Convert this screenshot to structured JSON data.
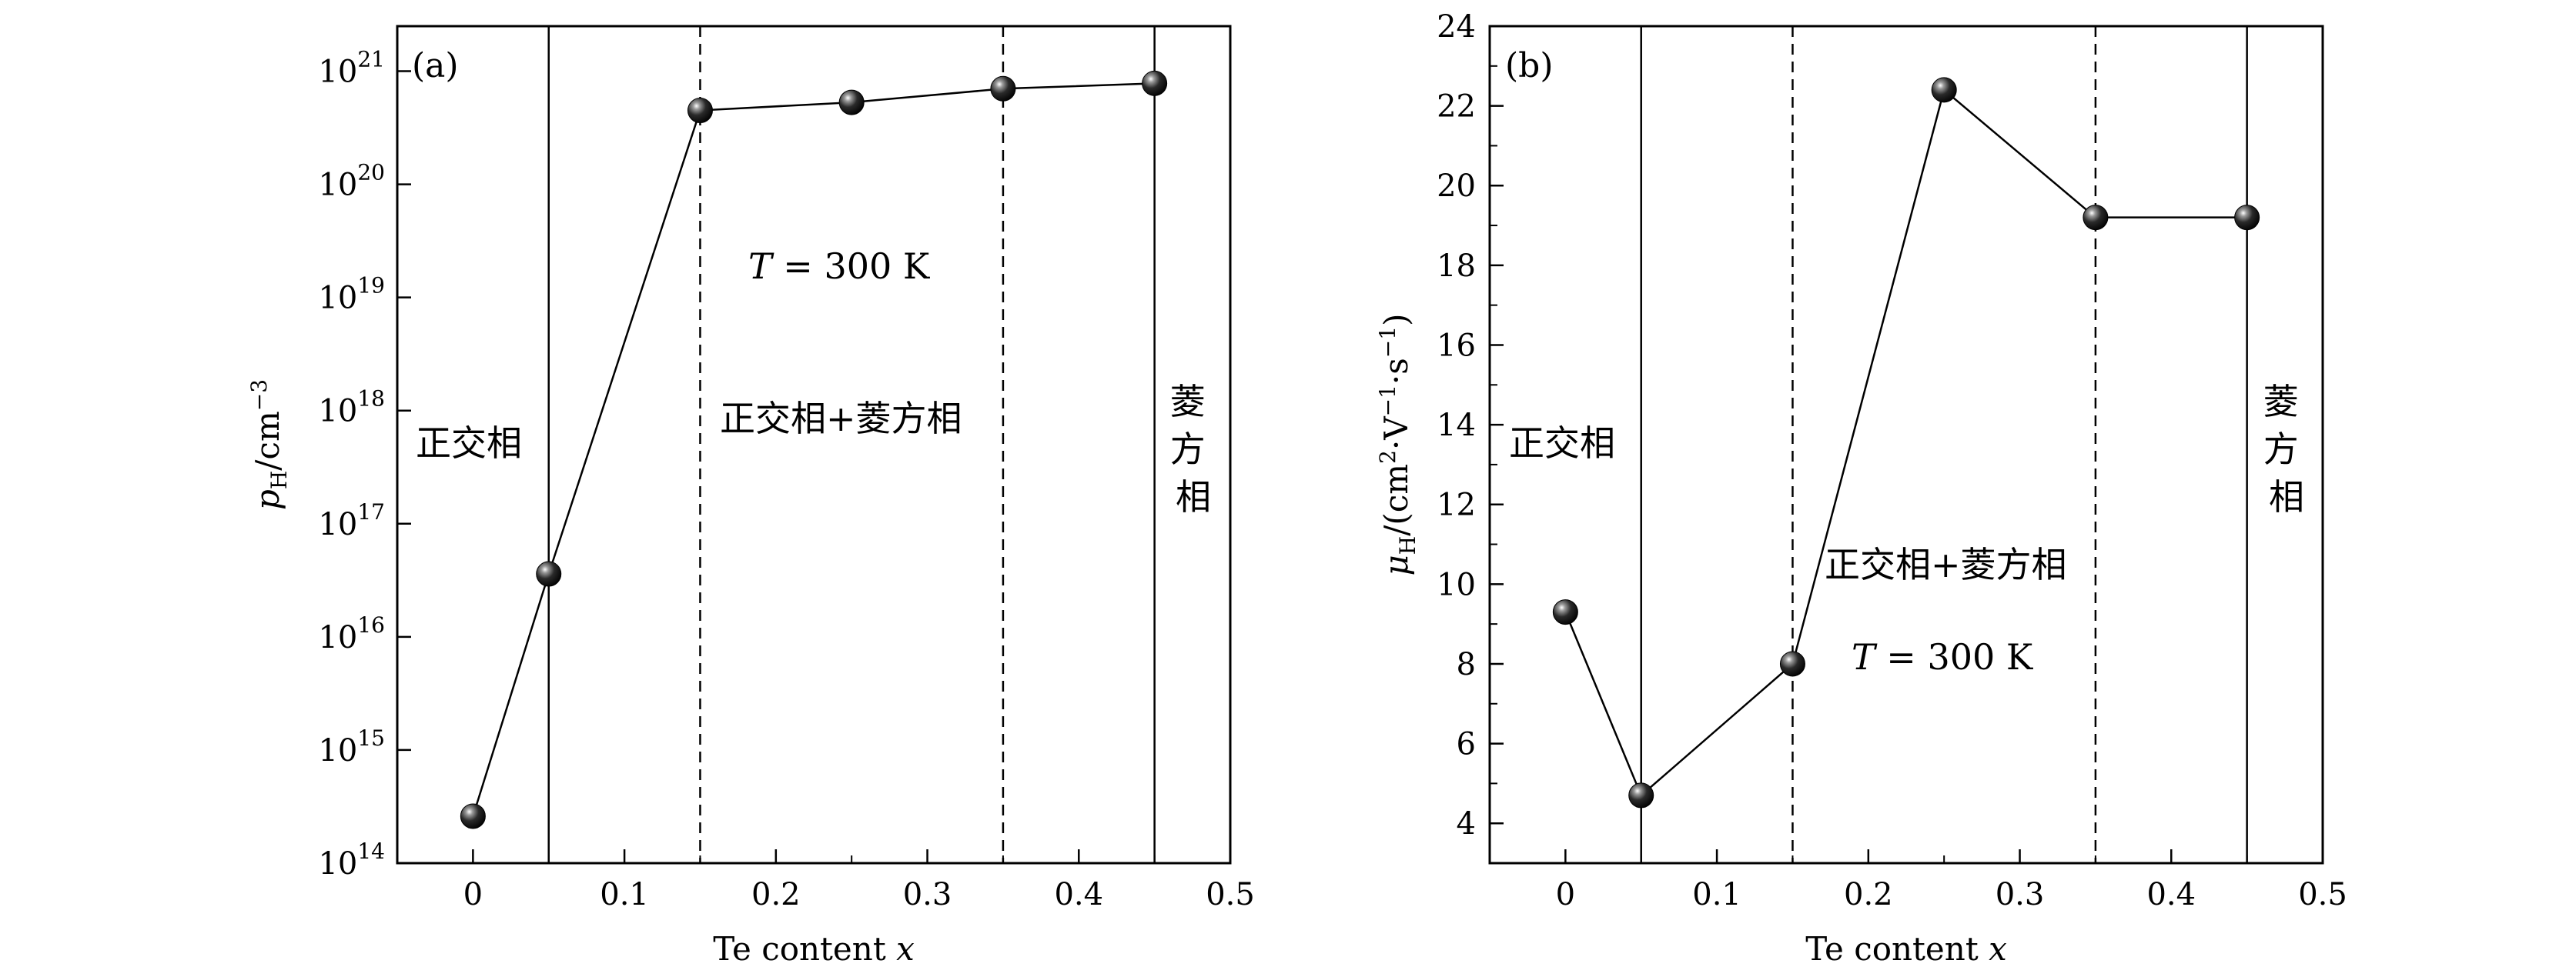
{
  "chart_data": [
    {
      "type": "scatter",
      "panel_label": "(a)",
      "xlabel": "Te content x",
      "ylabel": "pH/cm−3",
      "ylabel_parts": {
        "sym": "p",
        "sub": "H",
        "unit": "/cm",
        "sup": "−3"
      },
      "xlim": [
        -0.05,
        0.5
      ],
      "ylim": [
        100000000000000.0,
        1e+21
      ],
      "ylim_plot": [
        100000000000000.0,
        2.5e+21
      ],
      "y_scale": "log",
      "xticks": [
        "0",
        "0.1",
        "0.2",
        "0.3",
        "0.4",
        "0.5"
      ],
      "xtick_values": [
        0,
        0.1,
        0.2,
        0.3,
        0.4,
        0.5
      ],
      "yticks": [
        {
          "base": "10",
          "exp": "14",
          "value": 100000000000000.0
        },
        {
          "base": "10",
          "exp": "15",
          "value": 1000000000000000.0
        },
        {
          "base": "10",
          "exp": "16",
          "value": 1e+16
        },
        {
          "base": "10",
          "exp": "17",
          "value": 1e+17
        },
        {
          "base": "10",
          "exp": "18",
          "value": 1e+18
        },
        {
          "base": "10",
          "exp": "19",
          "value": 1e+19
        },
        {
          "base": "10",
          "exp": "20",
          "value": 1e+20
        },
        {
          "base": "10",
          "exp": "21",
          "value": 1e+21
        }
      ],
      "x": [
        0,
        0.05,
        0.15,
        0.25,
        0.35,
        0.45
      ],
      "y": [
        260000000000000.0,
        3.6e+16,
        4.5e+20,
        5.3e+20,
        7e+20,
        7.8e+20
      ],
      "phase_boundaries": [
        {
          "x": 0.05,
          "style": "solid"
        },
        {
          "x": 0.15,
          "style": "dashed"
        },
        {
          "x": 0.35,
          "style": "dashed"
        },
        {
          "x": 0.45,
          "style": "solid"
        }
      ],
      "annotations": {
        "temperature": {
          "italic": "T",
          "rest": " = 300 K"
        },
        "phase1": "正交相",
        "phase2": "正交相+菱方相",
        "phase3": [
          "菱",
          "方",
          "相"
        ]
      },
      "grid": false,
      "marker": "black sphere"
    },
    {
      "type": "scatter",
      "panel_label": "(b)",
      "xlabel": "Te content x",
      "ylabel": "μH/(cm2·V−1·s−1)",
      "ylabel_parts": {
        "sym": "μ",
        "sub": "H",
        "p1": "/(cm",
        "s1": "2",
        "p2": "·V",
        "s2": "−1",
        "p3": "·s",
        "s3": "−1",
        "p4": ")"
      },
      "xlim": [
        -0.05,
        0.5
      ],
      "ylim": [
        3,
        24
      ],
      "y_scale": "linear",
      "xticks": [
        "0",
        "0.1",
        "0.2",
        "0.3",
        "0.4",
        "0.5"
      ],
      "xtick_values": [
        0,
        0.1,
        0.2,
        0.3,
        0.4,
        0.5
      ],
      "yticks": [
        "4",
        "6",
        "8",
        "10",
        "12",
        "14",
        "16",
        "18",
        "20",
        "22",
        "24"
      ],
      "ytick_values": [
        4,
        6,
        8,
        10,
        12,
        14,
        16,
        18,
        20,
        22,
        24
      ],
      "x": [
        0,
        0.05,
        0.15,
        0.25,
        0.35,
        0.45
      ],
      "y": [
        9.3,
        4.7,
        8.0,
        22.4,
        19.2,
        19.2
      ],
      "phase_boundaries": [
        {
          "x": 0.05,
          "style": "solid"
        },
        {
          "x": 0.15,
          "style": "dashed"
        },
        {
          "x": 0.35,
          "style": "dashed"
        },
        {
          "x": 0.45,
          "style": "solid"
        }
      ],
      "annotations": {
        "temperature": {
          "italic": "T",
          "rest": " = 300 K"
        },
        "phase1": "正交相",
        "phase2": "正交相+菱方相",
        "phase3": [
          "菱",
          "方",
          "相"
        ]
      },
      "grid": false,
      "marker": "black sphere"
    }
  ]
}
